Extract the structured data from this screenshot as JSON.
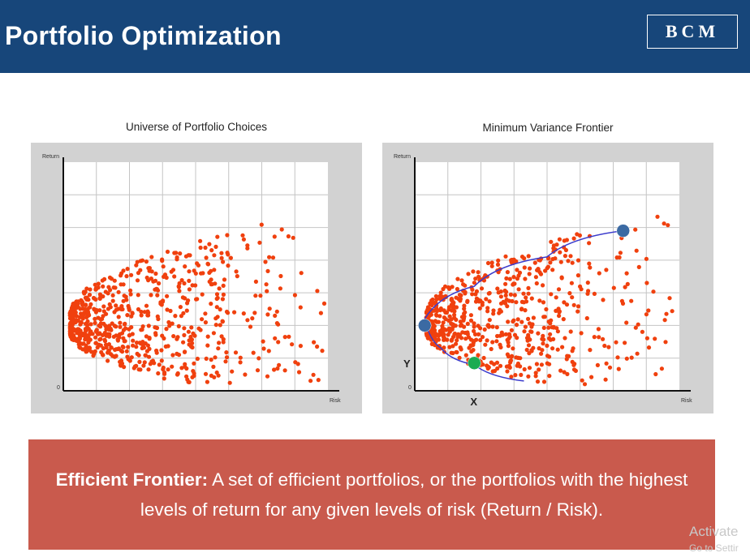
{
  "header": {
    "title": "Portfolio Optimization",
    "logo_text": "BCM",
    "background": "#17467a"
  },
  "colors": {
    "points": "#f0400e",
    "frontier_line": "#3b3bcc",
    "frontier_marker": "#3b6aa3",
    "min_return_marker": "#1aab52",
    "definition_box": "#c95a4d"
  },
  "chart_data": [
    {
      "type": "scatter",
      "title": "Universe of Portfolio Choices",
      "ylabel": "Return",
      "xlabel": "Risk",
      "origin_label": "0",
      "xlim": [
        0,
        8
      ],
      "ylim": [
        0,
        7
      ],
      "grid": true,
      "legend": "none",
      "seed": 7,
      "cloud": {
        "count": 720,
        "vertex_x": 0.2,
        "center_y": 2.0,
        "spread_y": 1.9,
        "max_x": 7.9,
        "description_values": "sideways parabola cloud of portfolio (risk, return) points"
      }
    },
    {
      "type": "scatter",
      "title": "Minimum Variance Frontier",
      "ylabel": "Return",
      "xlabel": "Risk",
      "origin_label": "0",
      "xlim": [
        0,
        8
      ],
      "ylim": [
        0,
        7
      ],
      "grid": true,
      "legend": "none",
      "seed": 11,
      "cloud": {
        "count": 680,
        "vertex_x": 0.35,
        "center_y": 2.0,
        "spread_y": 1.9,
        "max_x": 7.9
      },
      "frontier": {
        "points": [
          [
            0.3,
            2.2
          ],
          [
            1.8,
            3.2
          ],
          [
            4.0,
            4.1
          ],
          [
            6.3,
            4.9
          ]
        ],
        "lower_points": [
          [
            0.3,
            2.2
          ],
          [
            0.8,
            1.3
          ],
          [
            1.8,
            0.8
          ],
          [
            3.3,
            0.3
          ]
        ]
      },
      "markers": [
        {
          "x": 0.3,
          "y": 2.0,
          "label": ""
        },
        {
          "x": 6.3,
          "y": 4.9,
          "label": ""
        },
        {
          "x": 1.8,
          "y": 0.85,
          "label": ""
        }
      ],
      "annotations": {
        "x_label": "X",
        "y_label": "Y"
      }
    }
  ],
  "definition": {
    "term": "Efficient Frontier:",
    "text": " A set of efficient portfolios, or the portfolios with the highest levels of return for any given levels of risk (Return / Risk)."
  },
  "watermark": {
    "line1": "Activate",
    "line2": "Go to Settir"
  }
}
